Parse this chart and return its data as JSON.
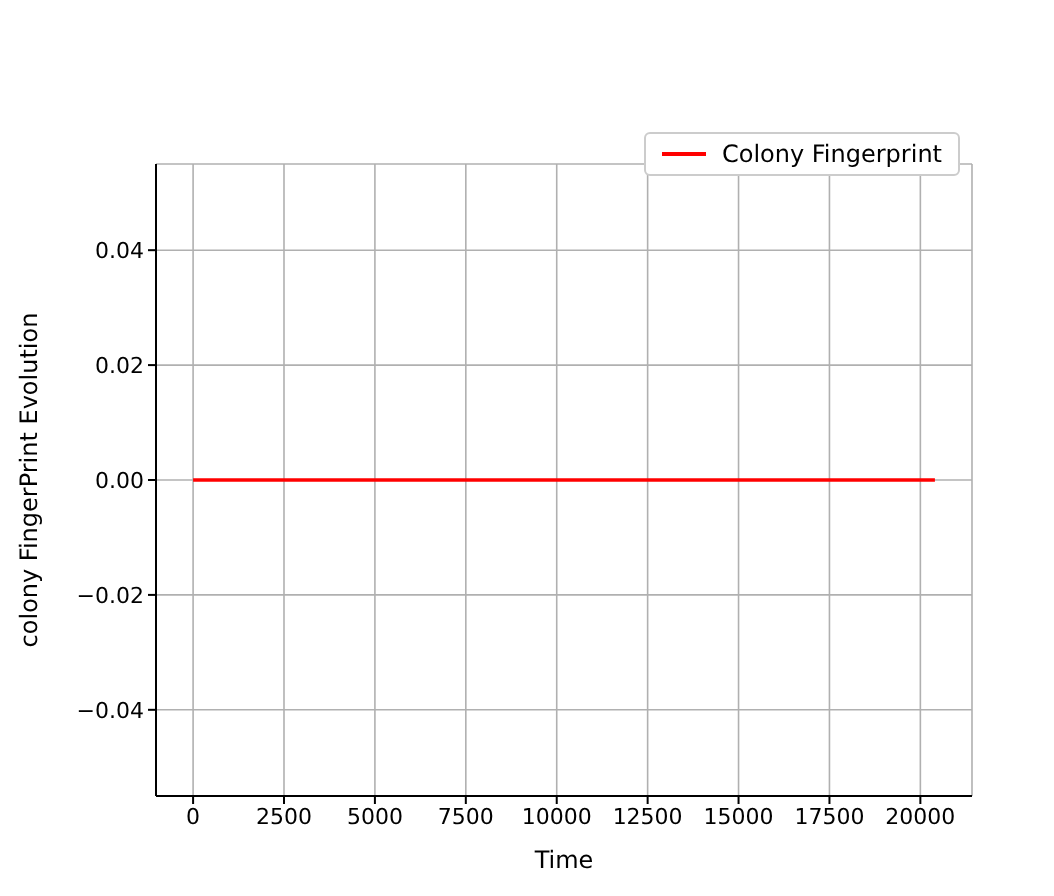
{
  "chart_data": {
    "type": "line",
    "xlabel": "Time",
    "ylabel": "colony FingerPrint Evolution",
    "x": [
      0,
      20400
    ],
    "series": [
      {
        "name": "Colony Fingerprint",
        "color": "#ff0000",
        "values": [
          0,
          0
        ]
      }
    ],
    "xlim": [
      -1020,
      21420
    ],
    "xticks": [
      0,
      2500,
      5000,
      7500,
      10000,
      12500,
      15000,
      17500,
      20000
    ],
    "ylim": [
      -0.055,
      0.055
    ],
    "yticks": [
      {
        "value": -0.04,
        "label": "−0.04"
      },
      {
        "value": -0.02,
        "label": "−0.02"
      },
      {
        "value": 0,
        "label": "0.00"
      },
      {
        "value": 0.02,
        "label": "0.02"
      },
      {
        "value": 0.04,
        "label": "0.04"
      }
    ],
    "grid": true,
    "legend": "top right",
    "line_style": "solid",
    "marker": "none"
  }
}
